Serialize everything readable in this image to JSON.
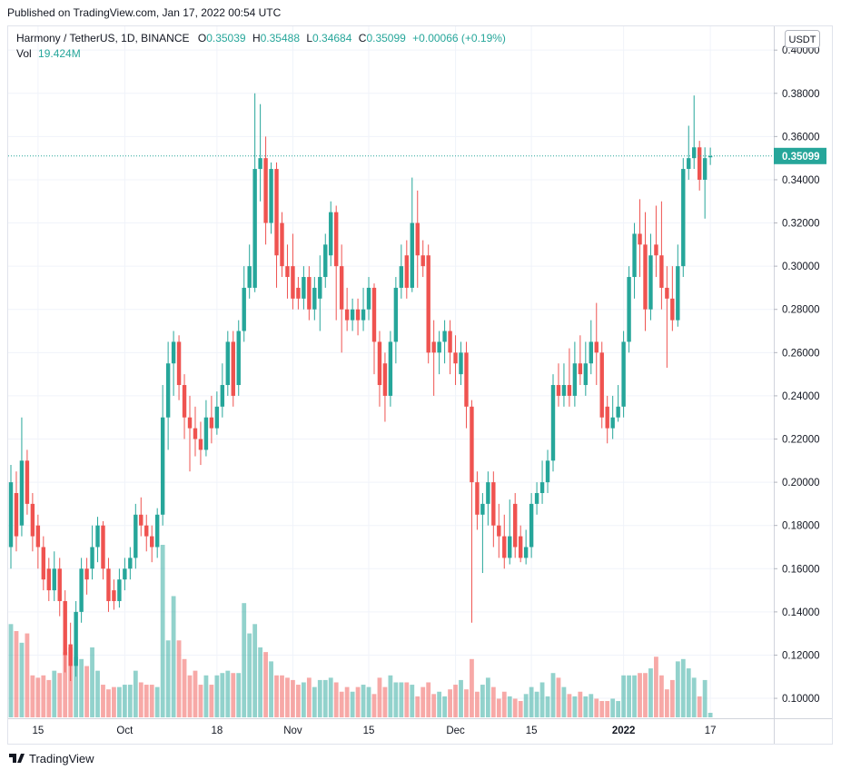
{
  "header": {
    "published": "Published on TradingView.com, Jan 17, 2022 00:54 UTC",
    "logo": "TradingView"
  },
  "chart_data": {
    "type": "candlestick",
    "title": "Harmony / TetherUS, 1D, BINANCE",
    "currency": "USDT",
    "ohlc_labels": [
      "O",
      "H",
      "L",
      "C"
    ],
    "change_label": "+0.00066 (+0.19%)",
    "volume_name": "Vol",
    "volume_label": "19.424M",
    "up_color": "#26a69a",
    "down_color": "#ef5350",
    "grid": true,
    "ylim": [
      0.0912,
      0.411
    ],
    "yticks": [
      {
        "value": 0.1,
        "label": "0.10000"
      },
      {
        "value": 0.12,
        "label": "0.12000"
      },
      {
        "value": 0.14,
        "label": "0.14000"
      },
      {
        "value": 0.16,
        "label": "0.16000"
      },
      {
        "value": 0.18,
        "label": "0.18000"
      },
      {
        "value": 0.2,
        "label": "0.20000"
      },
      {
        "value": 0.22,
        "label": "0.22000"
      },
      {
        "value": 0.24,
        "label": "0.24000"
      },
      {
        "value": 0.26,
        "label": "0.26000"
      },
      {
        "value": 0.28,
        "label": "0.28000"
      },
      {
        "value": 0.3,
        "label": "0.30000"
      },
      {
        "value": 0.32,
        "label": "0.32000"
      },
      {
        "value": 0.34,
        "label": "0.34000"
      },
      {
        "value": 0.36,
        "label": "0.36000"
      },
      {
        "value": 0.38,
        "label": "0.38000"
      },
      {
        "value": 0.4,
        "label": "0.40000"
      }
    ],
    "categories": [
      null,
      null,
      null,
      null,
      null,
      "15",
      null,
      null,
      null,
      null,
      null,
      null,
      null,
      null,
      null,
      null,
      null,
      null,
      null,
      null,
      null,
      "Oct",
      null,
      null,
      null,
      null,
      null,
      null,
      null,
      null,
      null,
      null,
      null,
      null,
      null,
      null,
      null,
      null,
      "18",
      null,
      null,
      null,
      null,
      null,
      null,
      null,
      null,
      null,
      null,
      null,
      null,
      null,
      "Nov",
      null,
      null,
      null,
      null,
      null,
      null,
      null,
      null,
      null,
      null,
      null,
      null,
      null,
      "15",
      null,
      null,
      null,
      null,
      null,
      null,
      null,
      null,
      null,
      null,
      null,
      null,
      null,
      null,
      null,
      "Dec",
      null,
      null,
      null,
      null,
      null,
      null,
      null,
      null,
      null,
      null,
      null,
      null,
      null,
      "15",
      null,
      null,
      null,
      null,
      null,
      null,
      null,
      null,
      null,
      null,
      null,
      null,
      null,
      null,
      null,
      null,
      "2022",
      null,
      null,
      null,
      null,
      null,
      null,
      null,
      null,
      null,
      null,
      null,
      null,
      null,
      null,
      null,
      "17"
    ],
    "open": [
      0.17,
      0.195,
      0.18,
      0.21,
      0.19,
      0.18,
      0.17,
      0.16,
      0.15,
      0.16,
      0.145,
      0.125,
      0.115,
      0.14,
      0.16,
      0.16,
      0.17,
      0.18,
      0.16,
      0.15,
      0.145,
      0.155,
      0.16,
      0.165,
      0.185,
      0.18,
      0.175,
      0.17,
      0.185,
      0.23,
      0.255,
      0.265,
      0.245,
      0.23,
      0.225,
      0.22,
      0.215,
      0.23,
      0.225,
      0.235,
      0.245,
      0.265,
      0.245,
      0.27,
      0.29,
      0.29,
      0.345,
      0.35,
      0.32,
      0.345,
      0.32,
      0.3,
      0.3,
      0.29,
      0.285,
      0.295,
      0.28,
      0.285,
      0.295,
      0.305,
      0.325,
      0.3,
      0.28,
      0.275,
      0.28,
      0.275,
      0.28,
      0.29,
      0.265,
      0.255,
      0.24,
      0.265,
      0.29,
      0.305,
      0.29,
      0.32,
      0.305,
      0.305,
      0.265,
      0.26,
      0.265,
      0.27,
      0.26,
      0.25,
      0.26,
      0.235,
      0.2,
      0.185,
      0.19,
      0.2,
      0.18,
      0.175,
      0.165,
      0.19,
      0.175,
      0.165,
      0.17,
      0.19,
      0.195,
      0.2,
      0.21,
      0.245,
      0.24,
      0.245,
      0.24,
      0.255,
      0.245,
      0.255,
      0.265,
      0.26,
      0.235,
      0.225,
      0.23,
      0.235,
      0.265,
      0.295,
      0.315,
      0.31,
      0.28,
      0.31,
      0.305,
      0.29,
      0.285,
      0.275,
      0.3,
      0.345,
      0.35,
      0.355,
      0.34,
      0.35039
    ],
    "high": [
      0.208,
      0.205,
      0.23,
      0.215,
      0.195,
      0.185,
      0.175,
      0.165,
      0.168,
      0.165,
      0.15,
      0.135,
      0.145,
      0.165,
      0.165,
      0.18,
      0.184,
      0.182,
      0.165,
      0.155,
      0.16,
      0.165,
      0.17,
      0.19,
      0.193,
      0.185,
      0.18,
      0.188,
      0.245,
      0.265,
      0.27,
      0.268,
      0.25,
      0.24,
      0.235,
      0.228,
      0.238,
      0.24,
      0.242,
      0.255,
      0.27,
      0.27,
      0.275,
      0.3,
      0.31,
      0.38,
      0.375,
      0.36,
      0.348,
      0.348,
      0.325,
      0.31,
      0.315,
      0.295,
      0.3,
      0.3,
      0.295,
      0.305,
      0.315,
      0.33,
      0.328,
      0.31,
      0.29,
      0.285,
      0.285,
      0.29,
      0.295,
      0.292,
      0.27,
      0.26,
      0.27,
      0.295,
      0.31,
      0.312,
      0.341,
      0.335,
      0.312,
      0.31,
      0.275,
      0.27,
      0.275,
      0.275,
      0.268,
      0.265,
      0.265,
      0.238,
      0.205,
      0.195,
      0.205,
      0.205,
      0.19,
      0.185,
      0.192,
      0.195,
      0.18,
      0.178,
      0.195,
      0.2,
      0.21,
      0.215,
      0.25,
      0.255,
      0.255,
      0.262,
      0.265,
      0.268,
      0.265,
      0.275,
      0.283,
      0.265,
      0.24,
      0.24,
      0.245,
      0.27,
      0.3,
      0.32,
      0.331,
      0.325,
      0.315,
      0.328,
      0.33,
      0.3,
      0.3,
      0.31,
      0.35,
      0.365,
      0.379,
      0.358,
      0.355,
      0.35488
    ],
    "low": [
      0.16,
      0.168,
      0.175,
      0.185,
      0.168,
      0.16,
      0.15,
      0.145,
      0.145,
      0.138,
      0.112,
      0.108,
      0.11,
      0.135,
      0.148,
      0.155,
      0.163,
      0.155,
      0.14,
      0.141,
      0.142,
      0.15,
      0.155,
      0.16,
      0.175,
      0.168,
      0.163,
      0.165,
      0.18,
      0.215,
      0.24,
      0.238,
      0.22,
      0.205,
      0.212,
      0.208,
      0.212,
      0.218,
      0.222,
      0.23,
      0.24,
      0.235,
      0.24,
      0.265,
      0.285,
      0.288,
      0.33,
      0.31,
      0.315,
      0.29,
      0.295,
      0.285,
      0.28,
      0.28,
      0.28,
      0.275,
      0.275,
      0.27,
      0.29,
      0.3,
      0.275,
      0.26,
      0.27,
      0.27,
      0.268,
      0.27,
      0.275,
      0.25,
      0.235,
      0.228,
      0.235,
      0.255,
      0.285,
      0.285,
      0.288,
      0.29,
      0.295,
      0.255,
      0.24,
      0.25,
      0.255,
      0.25,
      0.245,
      0.245,
      0.225,
      0.135,
      0.178,
      0.158,
      0.18,
      0.17,
      0.165,
      0.16,
      0.162,
      0.165,
      0.163,
      0.162,
      0.165,
      0.185,
      0.19,
      0.195,
      0.205,
      0.235,
      0.235,
      0.235,
      0.235,
      0.245,
      0.24,
      0.25,
      0.245,
      0.225,
      0.218,
      0.22,
      0.228,
      0.23,
      0.26,
      0.285,
      0.295,
      0.27,
      0.275,
      0.295,
      0.28,
      0.253,
      0.27,
      0.272,
      0.295,
      0.34,
      0.345,
      0.335,
      0.322,
      0.34684
    ],
    "close": [
      0.2,
      0.175,
      0.21,
      0.19,
      0.175,
      0.17,
      0.155,
      0.15,
      0.16,
      0.145,
      0.12,
      0.115,
      0.14,
      0.16,
      0.155,
      0.17,
      0.18,
      0.16,
      0.145,
      0.145,
      0.155,
      0.16,
      0.165,
      0.185,
      0.18,
      0.175,
      0.17,
      0.185,
      0.23,
      0.255,
      0.265,
      0.245,
      0.23,
      0.225,
      0.22,
      0.215,
      0.23,
      0.225,
      0.235,
      0.245,
      0.265,
      0.24,
      0.27,
      0.29,
      0.3,
      0.345,
      0.35,
      0.32,
      0.345,
      0.305,
      0.3,
      0.295,
      0.285,
      0.285,
      0.295,
      0.28,
      0.29,
      0.295,
      0.31,
      0.325,
      0.3,
      0.28,
      0.275,
      0.28,
      0.275,
      0.28,
      0.29,
      0.265,
      0.245,
      0.24,
      0.265,
      0.29,
      0.3,
      0.29,
      0.32,
      0.305,
      0.3,
      0.26,
      0.26,
      0.265,
      0.27,
      0.26,
      0.255,
      0.26,
      0.235,
      0.2,
      0.185,
      0.19,
      0.2,
      0.18,
      0.175,
      0.165,
      0.175,
      0.17,
      0.165,
      0.17,
      0.19,
      0.195,
      0.2,
      0.21,
      0.245,
      0.24,
      0.245,
      0.24,
      0.255,
      0.25,
      0.255,
      0.265,
      0.26,
      0.23,
      0.225,
      0.23,
      0.235,
      0.265,
      0.295,
      0.315,
      0.31,
      0.28,
      0.305,
      0.305,
      0.29,
      0.285,
      0.275,
      0.3,
      0.345,
      0.35,
      0.355,
      0.34,
      0.35,
      0.35099
    ],
    "volume": [
      400,
      370,
      320,
      360,
      180,
      170,
      180,
      160,
      200,
      190,
      280,
      300,
      260,
      250,
      220,
      300,
      200,
      140,
      120,
      130,
      130,
      140,
      140,
      200,
      150,
      140,
      140,
      130,
      740,
      330,
      520,
      330,
      250,
      180,
      200,
      140,
      180,
      140,
      180,
      190,
      200,
      190,
      190,
      490,
      360,
      400,
      300,
      280,
      240,
      180,
      180,
      170,
      160,
      140,
      150,
      170,
      130,
      160,
      160,
      170,
      150,
      110,
      130,
      110,
      130,
      140,
      130,
      100,
      170,
      130,
      180,
      150,
      150,
      150,
      140,
      90,
      130,
      150,
      100,
      110,
      90,
      120,
      140,
      160,
      120,
      250,
      110,
      140,
      170,
      130,
      80,
      110,
      90,
      80,
      70,
      100,
      130,
      110,
      150,
      90,
      190,
      170,
      130,
      100,
      90,
      110,
      90,
      100,
      80,
      70,
      70,
      80,
      70,
      180,
      180,
      180,
      190,
      190,
      210,
      260,
      180,
      120,
      160,
      240,
      250,
      210,
      170,
      90,
      160,
      19.424
    ]
  }
}
